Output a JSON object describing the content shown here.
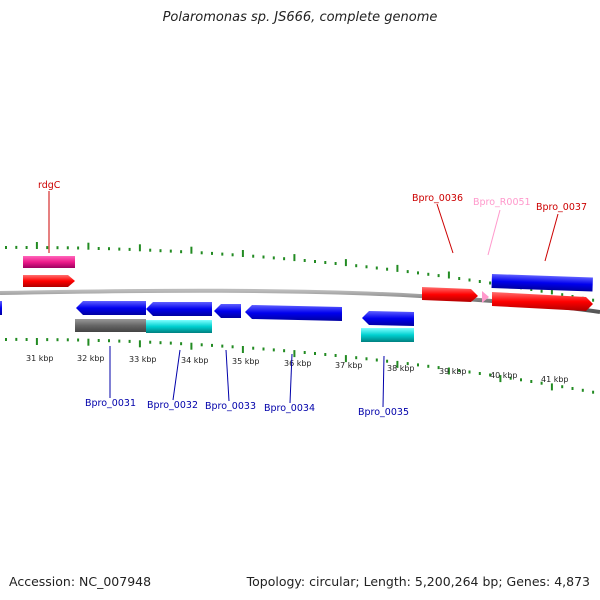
{
  "title": "Polaromonas sp. JS666, complete genome",
  "footer": {
    "accession": "Accession: NC_007948",
    "summary": "Topology: circular; Length: 5,200,264 bp; Genes: 4,873"
  },
  "colors": {
    "forward_gene": "#ff0000",
    "reverse_gene": "#0000ee",
    "rna": "#ff69b4",
    "pseudo": "#666666",
    "cds_cyan": "#00cccc",
    "tick": "#228b22",
    "backbone": "#888888"
  },
  "scale": {
    "labels": [
      "31 kbp",
      "32 kbp",
      "33 kbp",
      "34 kbp",
      "35 kbp",
      "36 kbp",
      "37 kbp",
      "38 kbp",
      "39 kbp",
      "40 kbp",
      "41 kbp"
    ]
  },
  "gene_labels": {
    "rdgC": "rdgC",
    "bpro_0031": "Bpro_0031",
    "bpro_0032": "Bpro_0032",
    "bpro_0033": "Bpro_0033",
    "bpro_0034": "Bpro_0034",
    "bpro_0035": "Bpro_0035",
    "bpro_0036": "Bpro_0036",
    "bpro_r0051": "Bpro_R0051",
    "bpro_0037": "Bpro_0037"
  }
}
